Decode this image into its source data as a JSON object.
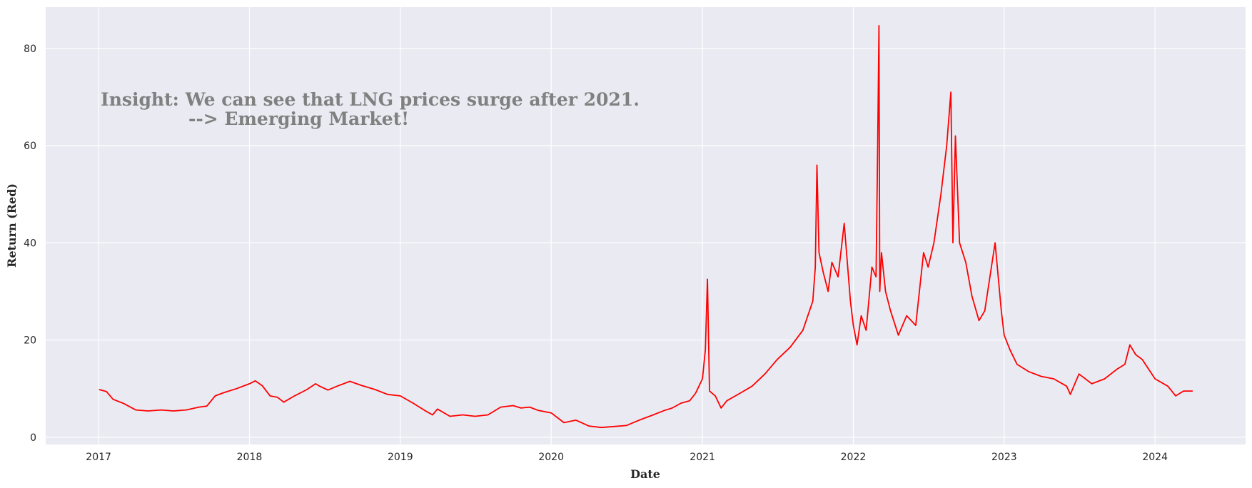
{
  "chart_data": {
    "type": "line",
    "title": "",
    "xlabel": "Date",
    "ylabel": "Return (Red)",
    "x_ticks": [
      "2017",
      "2018",
      "2019",
      "2020",
      "2021",
      "2022",
      "2023",
      "2024"
    ],
    "y_ticks": [
      "0",
      "20",
      "40",
      "60",
      "80"
    ],
    "xlim": [
      "2016-08-26",
      "2024-08-07"
    ],
    "ylim": [
      -1.5,
      88.5
    ],
    "grid": true,
    "line_color": "#ff0000",
    "plot_background": "#eaeaf2",
    "annotation": {
      "line1": "Insight: We can see that LNG prices surge after 2021.",
      "line2": "-->  Emerging Market!"
    },
    "series": [
      {
        "x": [
          "2017-01-02",
          "2017-01-20",
          "2017-02-05",
          "2017-03-01",
          "2017-04-01",
          "2017-05-01",
          "2017-06-01",
          "2017-07-01",
          "2017-08-01",
          "2017-09-01",
          "2017-09-20",
          "2017-10-10",
          "2017-11-01",
          "2017-12-01",
          "2018-01-01",
          "2018-01-15",
          "2018-02-01",
          "2018-02-20",
          "2018-03-10",
          "2018-03-25",
          "2018-04-20",
          "2018-05-20",
          "2018-06-10",
          "2018-06-20",
          "2018-07-10",
          "2018-08-01",
          "2018-09-01",
          "2018-10-01",
          "2018-11-01",
          "2018-12-01",
          "2019-01-01",
          "2019-02-01",
          "2019-03-01",
          "2019-03-20",
          "2019-04-01",
          "2019-05-01",
          "2019-06-01",
          "2019-07-01",
          "2019-08-01",
          "2019-09-01",
          "2019-10-01",
          "2019-10-20",
          "2019-11-10",
          "2019-12-01",
          "2020-01-01",
          "2020-02-01",
          "2020-03-01",
          "2020-04-01",
          "2020-05-01",
          "2020-06-01",
          "2020-07-01",
          "2020-08-01",
          "2020-09-01",
          "2020-10-01",
          "2020-10-20",
          "2020-11-10",
          "2020-12-01",
          "2020-12-15",
          "2021-01-01",
          "2021-01-08",
          "2021-01-13",
          "2021-01-18",
          "2021-02-01",
          "2021-02-15",
          "2021-03-01",
          "2021-04-01",
          "2021-05-01",
          "2021-06-01",
          "2021-07-01",
          "2021-08-01",
          "2021-09-01",
          "2021-09-25",
          "2021-10-01",
          "2021-10-05",
          "2021-10-10",
          "2021-10-20",
          "2021-11-01",
          "2021-11-10",
          "2021-11-25",
          "2021-12-10",
          "2021-12-25",
          "2022-01-01",
          "2022-01-10",
          "2022-01-20",
          "2022-02-01",
          "2022-02-15",
          "2022-02-25",
          "2022-03-01",
          "2022-03-04",
          "2022-03-06",
          "2022-03-10",
          "2022-03-20",
          "2022-04-01",
          "2022-04-20",
          "2022-05-10",
          "2022-06-01",
          "2022-06-20",
          "2022-07-01",
          "2022-07-15",
          "2022-08-01",
          "2022-08-15",
          "2022-08-25",
          "2022-08-30",
          "2022-09-05",
          "2022-09-15",
          "2022-09-30",
          "2022-10-15",
          "2022-11-01",
          "2022-11-15",
          "2022-12-01",
          "2022-12-10",
          "2022-12-25",
          "2023-01-01",
          "2023-01-15",
          "2023-02-01",
          "2023-03-01",
          "2023-04-01",
          "2023-05-01",
          "2023-06-01",
          "2023-06-10",
          "2023-07-01",
          "2023-08-01",
          "2023-09-01",
          "2023-10-01",
          "2023-10-20",
          "2023-11-01",
          "2023-11-15",
          "2023-12-01",
          "2024-01-01",
          "2024-02-01",
          "2024-02-20",
          "2024-03-10",
          "2024-04-01"
        ],
        "y": [
          9.8,
          9.4,
          7.8,
          7.0,
          5.6,
          5.4,
          5.6,
          5.4,
          5.6,
          6.2,
          6.4,
          8.5,
          9.2,
          10.0,
          11.0,
          11.6,
          10.6,
          8.5,
          8.2,
          7.2,
          8.5,
          9.8,
          11.0,
          10.5,
          9.7,
          10.5,
          11.5,
          10.6,
          9.8,
          8.8,
          8.5,
          7.0,
          5.5,
          4.6,
          5.8,
          4.3,
          4.6,
          4.3,
          4.6,
          6.2,
          6.5,
          6.0,
          6.2,
          5.5,
          5.0,
          3.0,
          3.5,
          2.3,
          2.0,
          2.2,
          2.4,
          3.5,
          4.5,
          5.5,
          6.0,
          7.0,
          7.5,
          9.0,
          12.0,
          18.0,
          32.5,
          9.5,
          8.5,
          6.0,
          7.5,
          9.0,
          10.5,
          13.0,
          16.0,
          18.5,
          22.0,
          28.0,
          35.0,
          56.0,
          38.0,
          34.0,
          30.0,
          36.0,
          33.0,
          44.0,
          28.0,
          23.0,
          19.0,
          25.0,
          22.0,
          35.0,
          33.0,
          60.0,
          84.7,
          30.0,
          38.0,
          30.0,
          26.0,
          21.0,
          25.0,
          23.0,
          38.0,
          35.0,
          40.0,
          50.0,
          60.0,
          71.0,
          40.0,
          62.0,
          40.0,
          36.0,
          29.0,
          24.0,
          26.0,
          35.0,
          40.0,
          26.0,
          21.0,
          18.0,
          15.0,
          13.5,
          12.5,
          12.0,
          10.5,
          8.8,
          13.0,
          11.0,
          12.0,
          14.0,
          15.0,
          19.0,
          17.0,
          16.0,
          12.0,
          10.5,
          8.5,
          9.5,
          9.5
        ]
      }
    ]
  }
}
